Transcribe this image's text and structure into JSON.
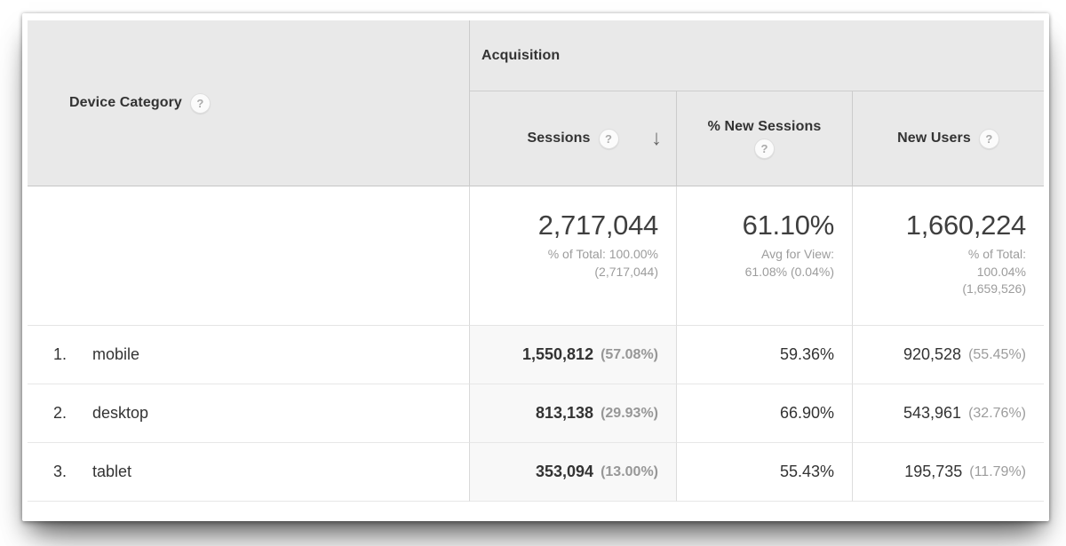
{
  "colors": {
    "header_bg": "#e9e9e9",
    "sorted_column_bg": "#f8f8f8",
    "header_text": "#333333",
    "value_text": "#333333",
    "muted_text": "#9c9c9c",
    "border": "#cccccc"
  },
  "table": {
    "dimension_header": {
      "label": "Device Category",
      "help_icon": "?"
    },
    "group_header": {
      "label": "Acquisition"
    },
    "columns": {
      "sessions": {
        "label": "Sessions",
        "help_icon": "?",
        "sort_arrow": "↓",
        "sort": "descending"
      },
      "new_sessions": {
        "label": "% New Sessions",
        "help_icon": "?"
      },
      "new_users": {
        "label": "New Users",
        "help_icon": "?"
      }
    },
    "totals": {
      "sessions": {
        "value": "2,717,044",
        "sub_lines": [
          "% of Total: 100.00%",
          "(2,717,044)"
        ]
      },
      "new_sessions": {
        "value": "61.10%",
        "sub_lines": [
          "Avg for View:",
          "61.08% (0.04%)"
        ]
      },
      "new_users": {
        "value": "1,660,224",
        "sub_lines": [
          "% of Total:",
          "100.04%",
          "(1,659,526)"
        ]
      }
    },
    "rows": [
      {
        "rank": "1.",
        "label": "mobile",
        "sessions": "1,550,812",
        "sessions_share": "(57.08%)",
        "pct_new_sessions": "59.36%",
        "new_users": "920,528",
        "new_users_share": "(55.45%)"
      },
      {
        "rank": "2.",
        "label": "desktop",
        "sessions": "813,138",
        "sessions_share": "(29.93%)",
        "pct_new_sessions": "66.90%",
        "new_users": "543,961",
        "new_users_share": "(32.76%)"
      },
      {
        "rank": "3.",
        "label": "tablet",
        "sessions": "353,094",
        "sessions_share": "(13.00%)",
        "pct_new_sessions": "55.43%",
        "new_users": "195,735",
        "new_users_share": "(11.79%)"
      }
    ]
  }
}
